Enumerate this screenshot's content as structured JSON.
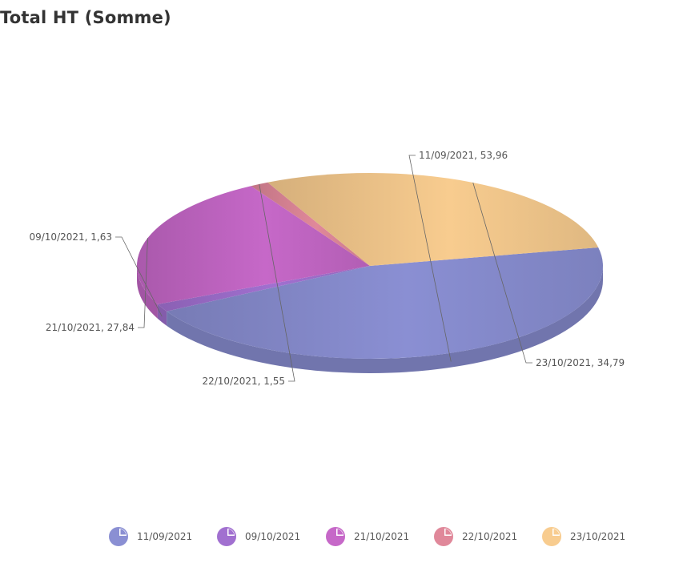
{
  "chart_title": "Total HT (Somme)",
  "chart_data": {
    "type": "pie",
    "title": "Total HT (Somme)",
    "categories": [
      "11/09/2021",
      "09/10/2021",
      "21/10/2021",
      "22/10/2021",
      "23/10/2021"
    ],
    "values": [
      53.96,
      1.63,
      27.84,
      1.55,
      34.79
    ],
    "value_labels": [
      "53,96",
      "1,63",
      "27,84",
      "1,55",
      "34,79"
    ],
    "data_labels": [
      "11/09/2021, 53,96",
      "09/10/2021, 1,63",
      "21/10/2021, 27,84",
      "22/10/2021, 1,55",
      "23/10/2021, 34,79"
    ],
    "colors": [
      "#8a8fd3",
      "#a170d0",
      "#c668c8",
      "#e0889a",
      "#f8cc8f"
    ],
    "legend_position": "bottom",
    "style": "3d"
  },
  "legend": {
    "items": [
      {
        "label": "11/09/2021",
        "color": "#8a8fd3",
        "icon": "pie-icon"
      },
      {
        "label": "09/10/2021",
        "color": "#a170d0",
        "icon": "pie-icon"
      },
      {
        "label": "21/10/2021",
        "color": "#c668c8",
        "icon": "pie-icon"
      },
      {
        "label": "22/10/2021",
        "color": "#e0889a",
        "icon": "pie-icon"
      },
      {
        "label": "23/10/2021",
        "color": "#f8cc8f",
        "icon": "pie-icon"
      }
    ]
  }
}
